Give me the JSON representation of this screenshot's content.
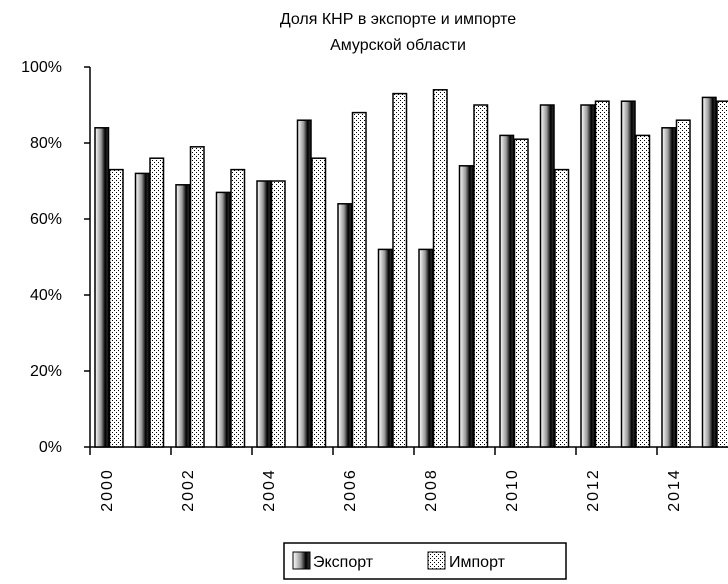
{
  "chart_data": {
    "type": "bar",
    "title_lines": [
      "Доля КНР в  экспорте и импорте",
      "Амурской области"
    ],
    "categories": [
      "2000",
      "2001",
      "2002",
      "2003",
      "2004",
      "2005",
      "2006",
      "2007",
      "2008",
      "2009",
      "2010",
      "2011",
      "2012",
      "2013",
      "2014",
      "2015"
    ],
    "x_tick_labels": [
      "2000",
      "2002",
      "2004",
      "2006",
      "2008",
      "2010",
      "2012",
      "2014"
    ],
    "y_ticks": [
      "0%",
      "20%",
      "40%",
      "60%",
      "80%",
      "100%"
    ],
    "ylim": [
      0,
      100
    ],
    "series": [
      {
        "name": "Экспорт",
        "values": [
          84,
          72,
          69,
          67,
          70,
          86,
          64,
          52,
          52,
          74,
          82,
          90,
          90,
          91,
          84,
          92
        ]
      },
      {
        "name": "Импорт",
        "values": [
          73,
          76,
          79,
          73,
          70,
          76,
          88,
          93,
          94,
          90,
          81,
          73,
          91,
          82,
          86,
          91
        ]
      }
    ],
    "legend_position": "bottom-center",
    "grid": false
  }
}
